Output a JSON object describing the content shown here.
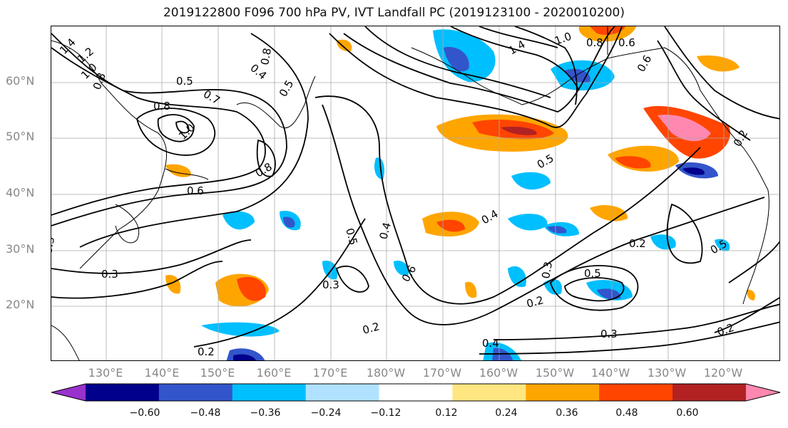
{
  "title": "2019122800 F096 700 hPa PV, IVT Landfall PC (2019123100 - 2020010200)",
  "latitude_labels": [
    "60°N",
    "50°N",
    "40°N",
    "30°N",
    "20°N"
  ],
  "longitude_labels": [
    "130°E",
    "140°E",
    "150°E",
    "160°E",
    "170°E",
    "180°W",
    "170°W",
    "160°W",
    "150°W",
    "140°W",
    "130°W",
    "120°W"
  ],
  "colorbar": {
    "tick_labels": [
      "−0.60",
      "−0.48",
      "−0.36",
      "−0.24",
      "−0.12",
      "0.12",
      "0.24",
      "0.36",
      "0.48",
      "0.60"
    ],
    "colors": [
      "#9932cc",
      "#00008b",
      "#3355cc",
      "#00bfff",
      "#b0e2ff",
      "#ffffff",
      "#ffe680",
      "#ffa500",
      "#ff4500",
      "#b22222",
      "#ff88b0"
    ],
    "extend": "both"
  },
  "contour_labels": [
    "1.4",
    "1.2",
    "1.0",
    "0.8",
    "0.5",
    "0.7",
    "0.8",
    "1.0",
    "0.6",
    "0.8",
    "0.4",
    "0.5",
    "0.8",
    "1.4",
    "1.0",
    "0.8",
    "0.6",
    "0.6",
    "0.5",
    "0.4",
    "0.4",
    "0.5",
    "0.6",
    "0.3",
    "0.3",
    "0.2",
    "0.2",
    "0.4",
    "0.2",
    "0.3",
    "0.5",
    "0.2",
    "0.3",
    "0.2",
    "0.5",
    "0.2",
    "0.3"
  ]
}
